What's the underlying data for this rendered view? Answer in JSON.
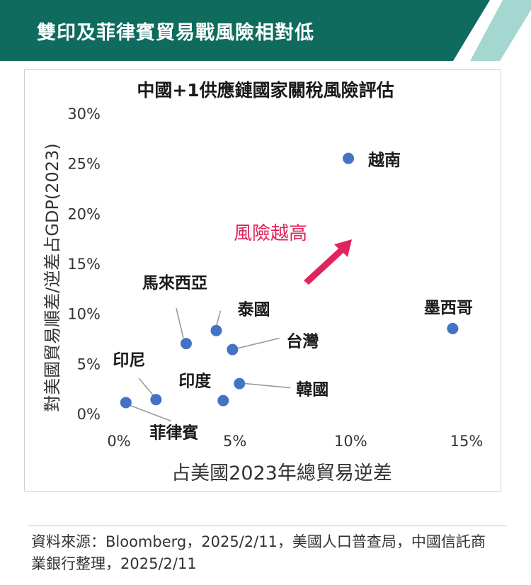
{
  "header": {
    "title": "雙印及菲律賓貿易戰風險相對低",
    "bg_color": "#0e6b5e",
    "stripe_color": "#a3d7d0"
  },
  "chart_data": {
    "type": "scatter",
    "title": "中國+1供應鏈國家關稅風險評估",
    "xlabel": "占美國2023年總貿易逆差",
    "ylabel": "對美國貿易順差/逆差占GDP(2023)",
    "xlim": [
      0,
      15
    ],
    "ylim": [
      0,
      30
    ],
    "x_ticks": [
      "0%",
      "5%",
      "10%",
      "15%"
    ],
    "y_ticks": [
      "0%",
      "5%",
      "10%",
      "15%",
      "20%",
      "25%",
      "30%"
    ],
    "grid": false,
    "marker_color": "#4472c4",
    "points": [
      {
        "label": "越南",
        "x": 9.9,
        "y": 25.5
      },
      {
        "label": "墨西哥",
        "x": 14.4,
        "y": 8.5
      },
      {
        "label": "泰國",
        "x": 4.2,
        "y": 8.3
      },
      {
        "label": "馬來西亞",
        "x": 2.9,
        "y": 7.0
      },
      {
        "label": "台灣",
        "x": 4.9,
        "y": 6.4
      },
      {
        "label": "韓國",
        "x": 5.2,
        "y": 3.0
      },
      {
        "label": "印度",
        "x": 4.5,
        "y": 1.3
      },
      {
        "label": "印尼",
        "x": 1.6,
        "y": 1.4
      },
      {
        "label": "菲律賓",
        "x": 0.3,
        "y": 1.1
      }
    ],
    "annotation": {
      "text": "風險越高",
      "color": "#e0245e"
    }
  },
  "source": "資料來源：Bloomberg，2025/2/11，美國人口普查局，中國信託商業銀行整理，2025/2/11"
}
